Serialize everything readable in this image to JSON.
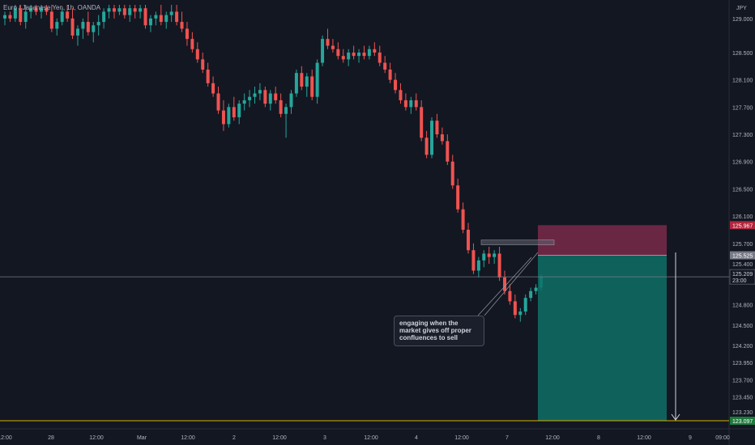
{
  "chart_data": {
    "type": "candlestick",
    "title": "Euro / Japanese Yen, 1h, OANDA",
    "currency": "JPY",
    "y_ticks": [
      "129.000",
      "128.500",
      "128.100",
      "127.700",
      "127.300",
      "126.900",
      "126.500",
      "126.100",
      "125.700",
      "125.400",
      "124.800",
      "124.500",
      "124.200",
      "123.950",
      "123.700",
      "123.450",
      "123.230"
    ],
    "ylim": [
      123.05,
      129.2
    ],
    "x_ticks": [
      "12:00",
      "28",
      "12:00",
      "Mar",
      "12:00",
      "2",
      "12:00",
      "3",
      "12:00",
      "4",
      "12:00",
      "7",
      "12:00",
      "8",
      "12:00",
      "9",
      "09:00"
    ],
    "price_labels": {
      "stop": "125.967",
      "entry": "125.525",
      "current": "125.209",
      "current_time": "23:00",
      "target": "123.097"
    },
    "candles": [
      [
        129.0,
        129.1,
        128.9,
        129.05
      ],
      [
        129.05,
        129.1,
        128.95,
        129.0
      ],
      [
        129.0,
        129.2,
        128.95,
        129.15
      ],
      [
        129.15,
        129.2,
        128.9,
        128.95
      ],
      [
        128.95,
        129.2,
        128.85,
        129.1
      ],
      [
        129.1,
        129.2,
        129.0,
        129.15
      ],
      [
        129.15,
        129.2,
        129.05,
        129.1
      ],
      [
        129.1,
        129.2,
        129.0,
        129.15
      ],
      [
        129.15,
        129.2,
        129.05,
        129.1
      ],
      [
        129.1,
        129.2,
        128.8,
        128.85
      ],
      [
        128.85,
        129.0,
        128.75,
        128.95
      ],
      [
        128.95,
        129.15,
        128.9,
        129.1
      ],
      [
        129.1,
        129.2,
        128.95,
        129.0
      ],
      [
        129.0,
        129.15,
        128.7,
        128.75
      ],
      [
        128.75,
        128.9,
        128.6,
        128.85
      ],
      [
        128.85,
        129.0,
        128.7,
        128.95
      ],
      [
        128.95,
        129.1,
        128.75,
        128.8
      ],
      [
        128.8,
        128.95,
        128.65,
        128.9
      ],
      [
        128.9,
        129.05,
        128.75,
        128.95
      ],
      [
        128.95,
        129.15,
        128.85,
        129.1
      ],
      [
        129.1,
        129.2,
        129.0,
        129.15
      ],
      [
        129.15,
        129.2,
        129.0,
        129.1
      ],
      [
        129.1,
        129.2,
        129.05,
        129.15
      ],
      [
        129.15,
        129.2,
        129.0,
        129.05
      ],
      [
        129.05,
        129.2,
        128.95,
        129.15
      ],
      [
        129.15,
        129.2,
        129.0,
        129.1
      ],
      [
        129.1,
        129.2,
        129.0,
        129.15
      ],
      [
        129.15,
        129.2,
        128.85,
        128.9
      ],
      [
        128.9,
        129.05,
        128.8,
        129.0
      ],
      [
        129.0,
        129.1,
        128.9,
        129.05
      ],
      [
        129.05,
        129.2,
        128.9,
        128.95
      ],
      [
        128.95,
        129.1,
        128.85,
        129.05
      ],
      [
        129.05,
        129.2,
        128.95,
        129.1
      ],
      [
        129.1,
        129.2,
        128.9,
        128.95
      ],
      [
        128.95,
        129.1,
        128.8,
        128.85
      ],
      [
        128.85,
        128.95,
        128.6,
        128.7
      ],
      [
        128.7,
        128.8,
        128.5,
        128.55
      ],
      [
        128.55,
        128.65,
        128.35,
        128.4
      ],
      [
        128.4,
        128.5,
        128.2,
        128.25
      ],
      [
        128.25,
        128.35,
        128.0,
        128.05
      ],
      [
        128.05,
        128.15,
        127.85,
        127.9
      ],
      [
        127.9,
        128.0,
        127.6,
        127.65
      ],
      [
        127.65,
        127.8,
        127.35,
        127.45
      ],
      [
        127.45,
        127.75,
        127.4,
        127.7
      ],
      [
        127.7,
        127.85,
        127.5,
        127.55
      ],
      [
        127.55,
        127.8,
        127.45,
        127.75
      ],
      [
        127.75,
        127.9,
        127.65,
        127.8
      ],
      [
        127.8,
        127.95,
        127.7,
        127.85
      ],
      [
        127.85,
        128.0,
        127.75,
        127.9
      ],
      [
        127.9,
        128.05,
        127.8,
        127.95
      ],
      [
        127.95,
        128.0,
        127.7,
        127.75
      ],
      [
        127.75,
        127.95,
        127.65,
        127.9
      ],
      [
        127.9,
        128.0,
        127.75,
        127.8
      ],
      [
        127.8,
        127.9,
        127.55,
        127.6
      ],
      [
        127.6,
        127.75,
        127.25,
        127.7
      ],
      [
        127.7,
        127.95,
        127.6,
        127.9
      ],
      [
        127.9,
        128.25,
        127.85,
        128.2
      ],
      [
        128.2,
        128.3,
        127.95,
        128.0
      ],
      [
        128.0,
        128.2,
        127.85,
        128.15
      ],
      [
        128.15,
        128.25,
        127.8,
        127.85
      ],
      [
        127.85,
        128.4,
        127.75,
        128.35
      ],
      [
        128.35,
        128.75,
        128.3,
        128.7
      ],
      [
        128.7,
        128.85,
        128.55,
        128.6
      ],
      [
        128.6,
        128.7,
        128.5,
        128.55
      ],
      [
        128.55,
        128.65,
        128.4,
        128.45
      ],
      [
        128.45,
        128.55,
        128.35,
        128.4
      ],
      [
        128.4,
        128.55,
        128.3,
        128.5
      ],
      [
        128.5,
        128.6,
        128.4,
        128.45
      ],
      [
        128.45,
        128.55,
        128.35,
        128.5
      ],
      [
        128.5,
        128.6,
        128.4,
        128.45
      ],
      [
        128.45,
        128.6,
        128.4,
        128.55
      ],
      [
        128.55,
        128.65,
        128.45,
        128.5
      ],
      [
        128.5,
        128.6,
        128.3,
        128.35
      ],
      [
        128.35,
        128.45,
        128.2,
        128.25
      ],
      [
        128.25,
        128.35,
        128.05,
        128.1
      ],
      [
        128.1,
        128.2,
        127.9,
        127.95
      ],
      [
        127.95,
        128.05,
        127.75,
        127.8
      ],
      [
        127.8,
        127.9,
        127.65,
        127.7
      ],
      [
        127.7,
        127.85,
        127.6,
        127.8
      ],
      [
        127.8,
        127.9,
        127.65,
        127.7
      ],
      [
        127.7,
        127.8,
        127.2,
        127.25
      ],
      [
        127.25,
        127.35,
        126.95,
        127.0
      ],
      [
        127.0,
        127.55,
        126.95,
        127.5
      ],
      [
        127.5,
        127.6,
        127.25,
        127.3
      ],
      [
        127.3,
        127.4,
        127.15,
        127.2
      ],
      [
        127.2,
        127.3,
        126.85,
        126.9
      ],
      [
        126.9,
        127.0,
        126.5,
        126.55
      ],
      [
        126.55,
        126.65,
        126.15,
        126.2
      ],
      [
        126.2,
        126.3,
        125.85,
        125.9
      ],
      [
        125.9,
        126.0,
        125.55,
        125.6
      ],
      [
        125.6,
        125.7,
        125.25,
        125.3
      ],
      [
        125.3,
        125.5,
        125.2,
        125.45
      ],
      [
        125.45,
        125.6,
        125.35,
        125.55
      ],
      [
        125.55,
        125.65,
        125.4,
        125.5
      ],
      [
        125.5,
        125.6,
        125.4,
        125.55
      ],
      [
        125.55,
        125.65,
        125.15,
        125.2
      ],
      [
        125.2,
        125.3,
        124.95,
        125.0
      ],
      [
        125.0,
        125.1,
        124.8,
        124.85
      ],
      [
        124.85,
        124.95,
        124.6,
        124.65
      ],
      [
        124.65,
        124.75,
        124.55,
        124.7
      ],
      [
        124.7,
        124.95,
        124.65,
        124.9
      ],
      [
        124.9,
        125.05,
        124.85,
        125.0
      ],
      [
        125.0,
        125.1,
        124.95,
        125.05
      ],
      [
        125.05,
        125.25,
        125.0,
        125.21
      ]
    ],
    "colors": {
      "up": "#26a69a",
      "down": "#ef5350",
      "stop_zone": "#7a2a4a",
      "target_zone": "#0f6e66"
    }
  },
  "annotation": {
    "text": "engaging  when the market gives off proper confluences to sell"
  }
}
